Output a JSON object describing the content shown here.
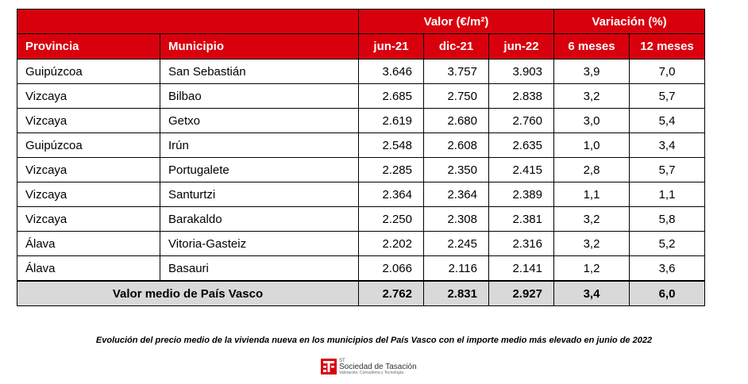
{
  "table": {
    "group_headers": {
      "valor": "Valor (€/m²)",
      "variacion": "Variación (%)"
    },
    "columns": [
      "Provincia",
      "Municipio",
      "jun-21",
      "dic-21",
      "jun-22",
      "6 meses",
      "12 meses"
    ],
    "rows": [
      [
        "Guipúzcoa",
        "San Sebastián",
        "3.646",
        "3.757",
        "3.903",
        "3,9",
        "7,0"
      ],
      [
        "Vizcaya",
        "Bilbao",
        "2.685",
        "2.750",
        "2.838",
        "3,2",
        "5,7"
      ],
      [
        "Vizcaya",
        "Getxo",
        "2.619",
        "2.680",
        "2.760",
        "3,0",
        "5,4"
      ],
      [
        "Guipúzcoa",
        "Irún",
        "2.548",
        "2.608",
        "2.635",
        "1,0",
        "3,4"
      ],
      [
        "Vizcaya",
        "Portugalete",
        "2.285",
        "2.350",
        "2.415",
        "2,8",
        "5,7"
      ],
      [
        "Vizcaya",
        "Santurtzi",
        "2.364",
        "2.364",
        "2.389",
        "1,1",
        "1,1"
      ],
      [
        "Vizcaya",
        "Barakaldo",
        "2.250",
        "2.308",
        "2.381",
        "3,2",
        "5,8"
      ],
      [
        "Álava",
        "Vitoria-Gasteiz",
        "2.202",
        "2.245",
        "2.316",
        "3,2",
        "5,2"
      ],
      [
        "Álava",
        "Basauri",
        "2.066",
        "2.116",
        "2.141",
        "1,2",
        "3,6"
      ]
    ],
    "average": {
      "label": "Valor medio de País Vasco",
      "values": [
        "2.762",
        "2.831",
        "2.927",
        "3,4",
        "6,0"
      ]
    }
  },
  "caption": "Evolución del precio medio de la vivienda nueva en los municipios del País Vasco con el importe medio más elevado en junio de 2022",
  "logo": {
    "small": "ST",
    "name": "Sociedad de Tasación",
    "tagline": "Valoración, Consultoría y Tecnología",
    "color": "#d9000d"
  }
}
